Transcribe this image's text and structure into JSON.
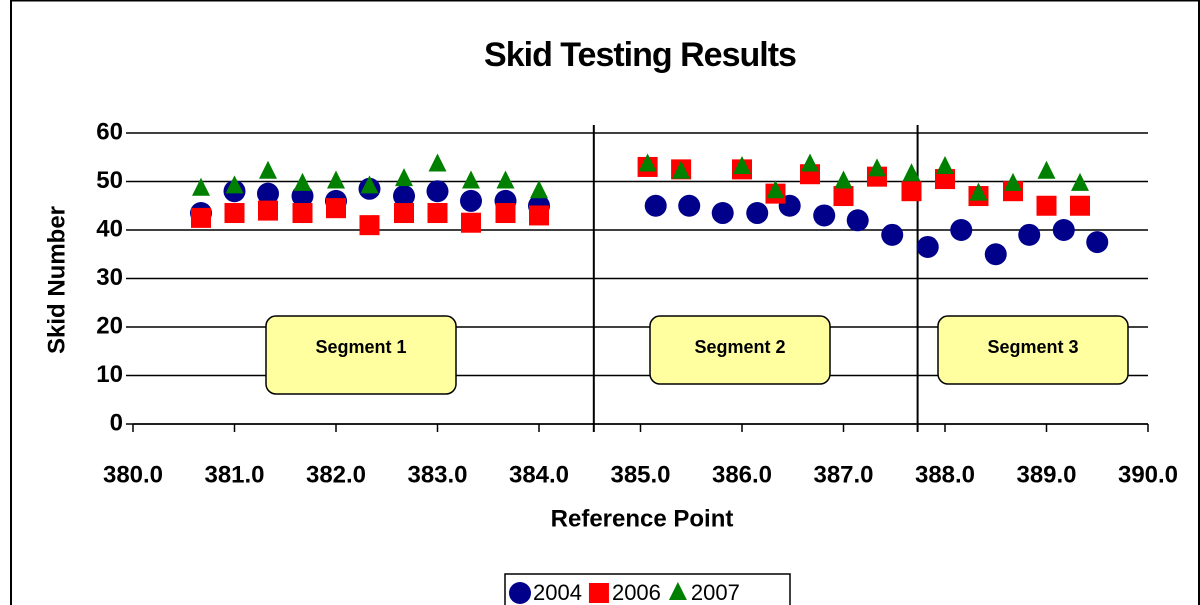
{
  "chart_data": {
    "type": "scatter",
    "title": "Skid Testing Results",
    "x_label": "Reference Point",
    "y_label": "Skid Number",
    "xlim": [
      380,
      390
    ],
    "ylim": [
      0,
      60
    ],
    "xticks": [
      {
        "value": 380,
        "label": "380.0"
      },
      {
        "value": 381,
        "label": "381.0"
      },
      {
        "value": 382,
        "label": "382.0"
      },
      {
        "value": 383,
        "label": "383.0"
      },
      {
        "value": 384,
        "label": "384.0"
      },
      {
        "value": 385,
        "label": "385.0"
      },
      {
        "value": 386,
        "label": "386.0"
      },
      {
        "value": 387,
        "label": "387.0"
      },
      {
        "value": 388,
        "label": "388.0"
      },
      {
        "value": 389,
        "label": "389.0"
      },
      {
        "value": 390,
        "label": "390.0"
      }
    ],
    "yticks": [
      0,
      10,
      20,
      30,
      40,
      50,
      60
    ],
    "grid": true,
    "segment_boundaries": [
      384.54,
      387.73
    ],
    "annotations": [
      "Segment 1",
      "Segment 2",
      "Segment 3"
    ],
    "series": [
      {
        "name": "2004",
        "color": "#00008b",
        "marker": "circle",
        "x": [
          380.67,
          381.0,
          381.33,
          381.67,
          382.0,
          382.33,
          382.67,
          383.0,
          383.33,
          383.67,
          384.0,
          385.15,
          385.48,
          385.81,
          386.15,
          386.47,
          386.81,
          387.14,
          387.48,
          387.83,
          388.16,
          388.5,
          388.83,
          389.17,
          389.5
        ],
        "values": [
          43.5,
          48,
          47.5,
          47,
          46,
          48.5,
          47,
          48,
          46,
          46,
          45,
          45,
          45,
          43.5,
          43.5,
          45,
          43,
          42,
          39,
          36.5,
          40,
          35,
          39,
          40,
          37.5
        ]
      },
      {
        "name": "2006",
        "color": "#ff0000",
        "marker": "square",
        "x": [
          380.67,
          381.0,
          381.33,
          381.67,
          382.0,
          382.33,
          382.67,
          383.0,
          383.33,
          383.67,
          384.0,
          385.07,
          385.4,
          386.0,
          386.33,
          386.67,
          387.0,
          387.33,
          387.67,
          388.0,
          388.33,
          388.67,
          389.0,
          389.33
        ],
        "values": [
          42.5,
          43.5,
          44,
          43.5,
          44.5,
          41,
          43.5,
          43.5,
          41.5,
          43.5,
          43,
          53,
          52.5,
          52.5,
          47.5,
          51.5,
          47,
          51,
          48,
          50.5,
          47,
          48,
          45,
          45
        ]
      },
      {
        "name": "2007",
        "color": "#008000",
        "marker": "triangle",
        "x": [
          380.67,
          381.0,
          381.33,
          381.67,
          382.0,
          382.33,
          382.67,
          383.0,
          383.33,
          383.67,
          384.0,
          385.07,
          385.4,
          386.0,
          386.33,
          386.67,
          387.0,
          387.33,
          387.67,
          388.0,
          388.33,
          388.67,
          389.0,
          389.33
        ],
        "values": [
          48.5,
          49,
          52,
          49.5,
          50,
          49,
          50.5,
          53.5,
          50,
          50,
          48,
          53.5,
          52,
          53,
          48,
          53.5,
          50,
          52.5,
          51.5,
          53,
          47.5,
          49.5,
          52,
          49.5
        ]
      }
    ]
  }
}
